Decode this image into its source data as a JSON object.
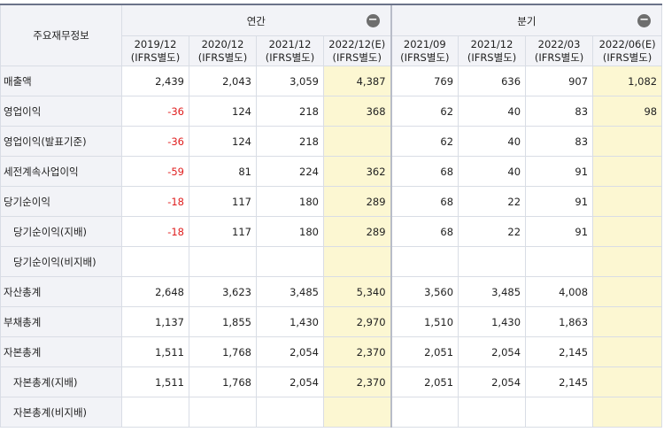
{
  "header": {
    "corner_label": "주요재무정보",
    "annual_label": "연간",
    "quarterly_label": "분기",
    "collapse_symbol": "−"
  },
  "periods": {
    "annual": [
      {
        "date": "2019/12",
        "basis": "(IFRS별도)"
      },
      {
        "date": "2020/12",
        "basis": "(IFRS별도)"
      },
      {
        "date": "2021/12",
        "basis": "(IFRS별도)"
      },
      {
        "date": "2022/12(E)",
        "basis": "(IFRS별도)"
      }
    ],
    "quarterly": [
      {
        "date": "2021/09",
        "basis": "(IFRS별도)"
      },
      {
        "date": "2021/12",
        "basis": "(IFRS별도)"
      },
      {
        "date": "2022/03",
        "basis": "(IFRS별도)"
      },
      {
        "date": "2022/06(E)",
        "basis": "(IFRS별도)"
      }
    ]
  },
  "rows": [
    {
      "label": "매출액",
      "indent": false,
      "annual": [
        "2,439",
        "2,043",
        "3,059",
        "4,387"
      ],
      "quarterly": [
        "769",
        "636",
        "907",
        "1,082"
      ]
    },
    {
      "label": "영업이익",
      "indent": false,
      "annual": [
        "-36",
        "124",
        "218",
        "368"
      ],
      "quarterly": [
        "62",
        "40",
        "83",
        "98"
      ]
    },
    {
      "label": "영업이익(발표기준)",
      "indent": false,
      "annual": [
        "-36",
        "124",
        "218",
        ""
      ],
      "quarterly": [
        "62",
        "40",
        "83",
        ""
      ]
    },
    {
      "label": "세전계속사업이익",
      "indent": false,
      "annual": [
        "-59",
        "81",
        "224",
        "362"
      ],
      "quarterly": [
        "68",
        "40",
        "91",
        ""
      ]
    },
    {
      "label": "당기순이익",
      "indent": false,
      "annual": [
        "-18",
        "117",
        "180",
        "289"
      ],
      "quarterly": [
        "68",
        "22",
        "91",
        ""
      ]
    },
    {
      "label": "당기순이익(지배)",
      "indent": true,
      "annual": [
        "-18",
        "117",
        "180",
        "289"
      ],
      "quarterly": [
        "68",
        "22",
        "91",
        ""
      ]
    },
    {
      "label": "당기순이익(비지배)",
      "indent": true,
      "annual": [
        "",
        "",
        "",
        ""
      ],
      "quarterly": [
        "",
        "",
        "",
        ""
      ]
    },
    {
      "label": "자산총계",
      "indent": false,
      "annual": [
        "2,648",
        "3,623",
        "3,485",
        "5,340"
      ],
      "quarterly": [
        "3,560",
        "3,485",
        "4,008",
        ""
      ]
    },
    {
      "label": "부채총계",
      "indent": false,
      "annual": [
        "1,137",
        "1,855",
        "1,430",
        "2,970"
      ],
      "quarterly": [
        "1,510",
        "1,430",
        "1,863",
        ""
      ]
    },
    {
      "label": "자본총계",
      "indent": false,
      "annual": [
        "1,511",
        "1,768",
        "2,054",
        "2,370"
      ],
      "quarterly": [
        "2,051",
        "2,054",
        "2,145",
        ""
      ]
    },
    {
      "label": "자본총계(지배)",
      "indent": true,
      "annual": [
        "1,511",
        "1,768",
        "2,054",
        "2,370"
      ],
      "quarterly": [
        "2,051",
        "2,054",
        "2,145",
        ""
      ]
    },
    {
      "label": "자본총계(비지배)",
      "indent": true,
      "annual": [
        "",
        "",
        "",
        ""
      ],
      "quarterly": [
        "",
        "",
        "",
        ""
      ]
    }
  ],
  "colors": {
    "negative": "#e02020",
    "estimate_bg": "#fcf7d2",
    "header_bg": "#f2f3f7"
  }
}
